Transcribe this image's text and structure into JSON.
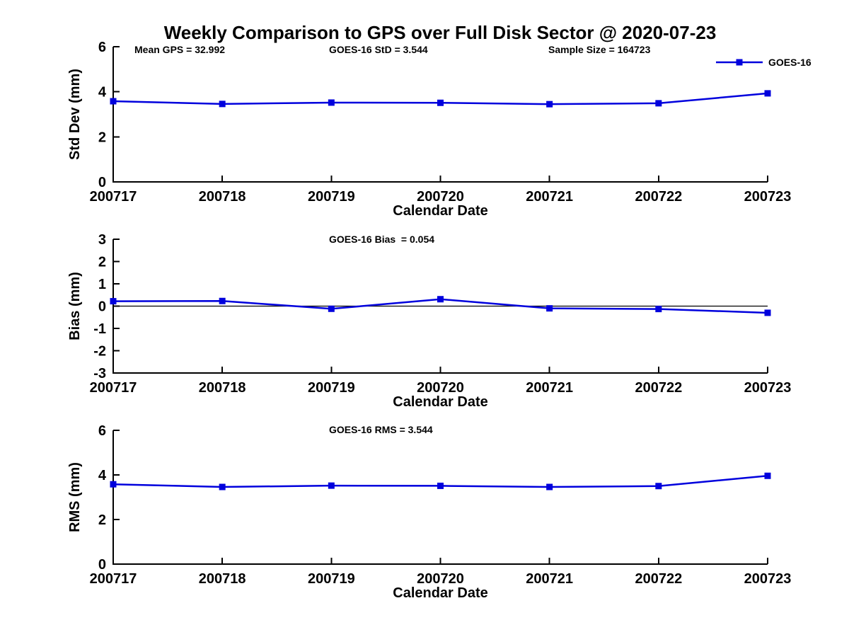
{
  "figure": {
    "title": "Weekly Comparison to GPS over Full Disk Sector @ 2020-07-23",
    "line_color": "#0000DD",
    "axis_color": "#000000",
    "background_color": "#ffffff",
    "legend_label": "GOES-16"
  },
  "chart_data": [
    {
      "type": "line",
      "title": "",
      "categories": [
        "200717",
        "200718",
        "200719",
        "200720",
        "200721",
        "200722",
        "200723"
      ],
      "series": [
        {
          "name": "GOES-16",
          "values": [
            3.58,
            3.46,
            3.52,
            3.51,
            3.45,
            3.49,
            3.93
          ]
        }
      ],
      "xlabel": "Calendar Date",
      "ylabel": "Std Dev (mm)",
      "ylim": [
        0,
        6
      ],
      "yticks": [
        0,
        2,
        4,
        6
      ],
      "grid": false,
      "marker": "square",
      "annotations": [
        "Mean GPS = 32.992",
        "GOES-16 StD = 3.544",
        "Sample Size = 164723"
      ],
      "legend": {
        "label": "GOES-16",
        "position": "top-right"
      }
    },
    {
      "type": "line",
      "title": "",
      "categories": [
        "200717",
        "200718",
        "200719",
        "200720",
        "200721",
        "200722",
        "200723"
      ],
      "series": [
        {
          "name": "GOES-16",
          "values": [
            0.22,
            0.23,
            -0.12,
            0.31,
            -0.1,
            -0.13,
            -0.3
          ]
        }
      ],
      "xlabel": "Calendar Date",
      "ylabel": "Bias (mm)",
      "ylim": [
        -3,
        3
      ],
      "yticks": [
        -3,
        -2,
        -1,
        0,
        1,
        2,
        3
      ],
      "grid": false,
      "marker": "square",
      "zero_line": true,
      "annotations": [
        "GOES-16 Bias  = 0.054"
      ]
    },
    {
      "type": "line",
      "title": "",
      "categories": [
        "200717",
        "200718",
        "200719",
        "200720",
        "200721",
        "200722",
        "200723"
      ],
      "series": [
        {
          "name": "GOES-16",
          "values": [
            3.58,
            3.46,
            3.52,
            3.51,
            3.46,
            3.5,
            3.96
          ]
        }
      ],
      "xlabel": "Calendar Date",
      "ylabel": "RMS (mm)",
      "ylim": [
        0,
        6
      ],
      "yticks": [
        0,
        2,
        4,
        6
      ],
      "grid": false,
      "marker": "square",
      "annotations": [
        "GOES-16 RMS = 3.544"
      ]
    }
  ]
}
